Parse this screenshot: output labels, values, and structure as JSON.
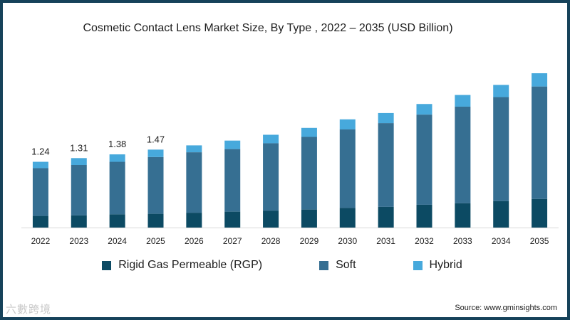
{
  "colors": {
    "rgp": "#0c4a63",
    "soft": "#366f92",
    "hybrid": "#47a9dc",
    "frame": "#16425a"
  },
  "chart_data": {
    "type": "bar",
    "stacked": true,
    "title": "Cosmetic Contact Lens Market Size, By Type , 2022 – 2035 (USD Billion)",
    "categories": [
      "2022",
      "2023",
      "2024",
      "2025",
      "2026",
      "2027",
      "2028",
      "2029",
      "2030",
      "2031",
      "2032",
      "2033",
      "2034",
      "2035"
    ],
    "series": [
      {
        "name": "Rigid Gas Permeable (RGP)",
        "values": [
          0.22,
          0.23,
          0.25,
          0.26,
          0.28,
          0.3,
          0.32,
          0.34,
          0.37,
          0.39,
          0.43,
          0.46,
          0.5,
          0.54
        ]
      },
      {
        "name": "Soft",
        "values": [
          0.9,
          0.95,
          0.99,
          1.07,
          1.14,
          1.18,
          1.27,
          1.37,
          1.48,
          1.58,
          1.7,
          1.82,
          1.96,
          2.12
        ]
      },
      {
        "name": "Hybrid",
        "values": [
          0.12,
          0.13,
          0.14,
          0.14,
          0.13,
          0.16,
          0.16,
          0.17,
          0.19,
          0.19,
          0.2,
          0.22,
          0.23,
          0.25
        ]
      }
    ],
    "data_labels": [
      "1.24",
      "1.31",
      "1.38",
      "1.47",
      "",
      "",
      "",
      "",
      "",
      "",
      "",
      "",
      "",
      ""
    ],
    "ylim": [
      0,
      2.95
    ],
    "grid": false,
    "legend": "bottom"
  },
  "source": "Source: www.gminsights.com",
  "watermark": "六數跨境"
}
